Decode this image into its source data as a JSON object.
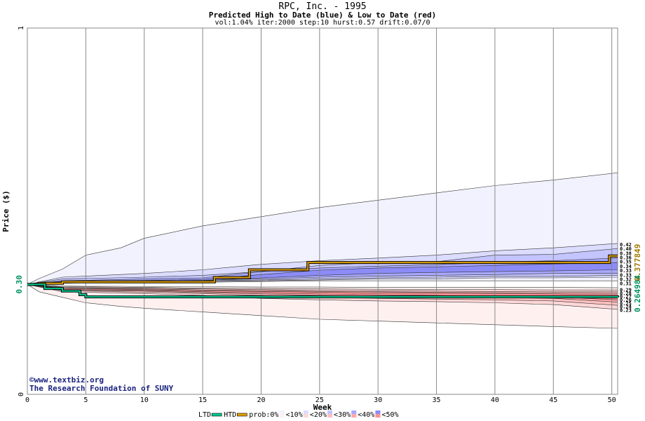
{
  "header": {
    "title": "RPC, Inc. - 1995",
    "subtitle": "Predicted High to Date (blue) &  Low to Date (red)",
    "params": "vol:1.04% iter:2000 step:10 hurst:0.57 drift:0.07/0"
  },
  "credits": {
    "line1": "©www.textbiz.org",
    "line2": "The Research Foundation of SUNY"
  },
  "chart_data": {
    "type": "area",
    "xlabel": "Week",
    "ylabel": "Price ($)",
    "xlim": [
      0,
      50.5
    ],
    "ylim": [
      0,
      1
    ],
    "x_ticks": [
      0,
      5,
      10,
      15,
      20,
      25,
      30,
      35,
      40,
      45,
      50
    ],
    "y_ticks": [
      0,
      1
    ],
    "y_tick_labels": [
      "0",
      "1"
    ],
    "start_price_label": "0.30",
    "start_price": 0.3,
    "grid": "vertical",
    "legend_placement": "bottom",
    "legend": {
      "ltd": "LTD",
      "htd": "HTD",
      "prob": "prob:0%",
      "buckets": [
        "<10%",
        "<20%",
        "<30%",
        "<40%",
        "<50%"
      ]
    },
    "colors": {
      "ltd_line": "#00c890",
      "htd_line": "#e0a000",
      "band_blue": [
        "#f2f2ff",
        "#dcdcff",
        "#c4c4ff",
        "#a8a8ff",
        "#8c8cf8"
      ],
      "band_red": [
        "#fff0f0",
        "#ffd8d8",
        "#ffc0c0",
        "#ffa8a8",
        "#ff9090"
      ]
    },
    "htd_final_label": "0.377849",
    "ltd_final_label": "0.264984",
    "right_labels_high": [
      "0.42",
      "0.40",
      "0.38",
      "0.36",
      "0.35",
      "0.34",
      "0.33",
      "0.33",
      "0.32",
      "0.31"
    ],
    "right_labels_low": [
      "0.29",
      "0.28",
      "0.27",
      "0.26",
      "0.25",
      "0.24",
      "0.23"
    ],
    "series": [
      {
        "name": "HTD",
        "x": [
          0,
          1,
          3,
          15.2,
          16,
          18,
          19,
          23.5,
          24,
          49.5,
          49.8,
          50.5
        ],
        "values": [
          0.3,
          0.303,
          0.307,
          0.307,
          0.319,
          0.319,
          0.34,
          0.34,
          0.36,
          0.36,
          0.378,
          0.378
        ]
      },
      {
        "name": "LTD",
        "x": [
          0,
          1.5,
          3,
          4.5,
          5,
          50.5
        ],
        "values": [
          0.3,
          0.289,
          0.282,
          0.272,
          0.266,
          0.265
        ]
      }
    ],
    "high_bands": [
      {
        "bucket": "<10%",
        "x": [
          0,
          1,
          3,
          5,
          8,
          10,
          15,
          20,
          25,
          30,
          35,
          40,
          45,
          50.5
        ],
        "upper": [
          0.3,
          0.316,
          0.342,
          0.38,
          0.4,
          0.426,
          0.46,
          0.485,
          0.51,
          0.53,
          0.55,
          0.57,
          0.585,
          0.605
        ],
        "lower": [
          0.3,
          0.301,
          0.303,
          0.305,
          0.305,
          0.305,
          0.306,
          0.308,
          0.31,
          0.31,
          0.31,
          0.31,
          0.31,
          0.31
        ]
      },
      {
        "bucket": "<20%",
        "x": [
          0,
          3,
          10,
          15,
          20,
          25,
          30,
          35,
          40,
          45,
          50.5
        ],
        "upper": [
          0.3,
          0.32,
          0.33,
          0.34,
          0.355,
          0.365,
          0.372,
          0.38,
          0.392,
          0.4,
          0.412
        ],
        "lower": [
          0.3,
          0.304,
          0.306,
          0.308,
          0.31,
          0.312,
          0.315,
          0.315,
          0.318,
          0.318,
          0.32
        ]
      },
      {
        "bucket": "<30%",
        "x": [
          0,
          3,
          10,
          15,
          20,
          25,
          30,
          35,
          40,
          45,
          50.5
        ],
        "upper": [
          0.3,
          0.315,
          0.32,
          0.325,
          0.335,
          0.352,
          0.36,
          0.362,
          0.38,
          0.382,
          0.398
        ],
        "lower": [
          0.3,
          0.305,
          0.307,
          0.31,
          0.312,
          0.315,
          0.318,
          0.32,
          0.322,
          0.322,
          0.325
        ]
      },
      {
        "bucket": "<40%",
        "x": [
          0,
          3,
          10,
          15,
          20,
          25,
          30,
          35,
          40,
          45,
          50.5
        ],
        "upper": [
          0.3,
          0.31,
          0.315,
          0.318,
          0.335,
          0.345,
          0.35,
          0.354,
          0.36,
          0.365,
          0.372
        ],
        "lower": [
          0.3,
          0.306,
          0.308,
          0.312,
          0.315,
          0.32,
          0.323,
          0.325,
          0.327,
          0.33,
          0.33
        ]
      },
      {
        "bucket": "<50%",
        "x": [
          0,
          3,
          10,
          15,
          20,
          25,
          30,
          35,
          40,
          45,
          50.5
        ],
        "upper": [
          0.3,
          0.309,
          0.311,
          0.314,
          0.327,
          0.339,
          0.345,
          0.348,
          0.352,
          0.356,
          0.36
        ],
        "lower": [
          0.3,
          0.306,
          0.308,
          0.311,
          0.318,
          0.325,
          0.33,
          0.333,
          0.335,
          0.337,
          0.34
        ]
      }
    ],
    "low_bands": [
      {
        "bucket": "<10%",
        "x": [
          0,
          1,
          3,
          5,
          8,
          10,
          15,
          20,
          25,
          30,
          35,
          40,
          45,
          50.5
        ],
        "upper": [
          0.3,
          0.298,
          0.296,
          0.295,
          0.295,
          0.294,
          0.294,
          0.293,
          0.293,
          0.292,
          0.292,
          0.292,
          0.292,
          0.291
        ],
        "lower": [
          0.3,
          0.28,
          0.265,
          0.25,
          0.24,
          0.235,
          0.225,
          0.215,
          0.205,
          0.2,
          0.195,
          0.19,
          0.185,
          0.18
        ]
      },
      {
        "bucket": "<20%",
        "x": [
          0,
          3,
          10,
          15,
          20,
          25,
          30,
          35,
          40,
          45,
          50.5
        ],
        "upper": [
          0.3,
          0.294,
          0.292,
          0.29,
          0.289,
          0.288,
          0.287,
          0.286,
          0.286,
          0.285,
          0.285
        ],
        "lower": [
          0.3,
          0.28,
          0.275,
          0.27,
          0.262,
          0.258,
          0.255,
          0.253,
          0.25,
          0.245,
          0.232
        ]
      },
      {
        "bucket": "<30%",
        "x": [
          0,
          3,
          10,
          15,
          20,
          25,
          30,
          35,
          40,
          45,
          50.5
        ],
        "upper": [
          0.3,
          0.292,
          0.29,
          0.288,
          0.286,
          0.284,
          0.283,
          0.282,
          0.281,
          0.28,
          0.28
        ],
        "lower": [
          0.3,
          0.283,
          0.279,
          0.275,
          0.27,
          0.265,
          0.262,
          0.26,
          0.258,
          0.255,
          0.243
        ]
      },
      {
        "bucket": "<40%",
        "x": [
          0,
          3,
          10,
          15,
          20,
          25,
          30,
          35,
          40,
          45,
          50.5
        ],
        "upper": [
          0.3,
          0.29,
          0.288,
          0.285,
          0.283,
          0.281,
          0.28,
          0.279,
          0.278,
          0.277,
          0.276
        ],
        "lower": [
          0.3,
          0.285,
          0.282,
          0.278,
          0.274,
          0.27,
          0.268,
          0.266,
          0.264,
          0.262,
          0.252
        ]
      },
      {
        "bucket": "<50%",
        "x": [
          0,
          3,
          10,
          15,
          20,
          25,
          30,
          35,
          40,
          45,
          50.5
        ],
        "upper": [
          0.3,
          0.289,
          0.286,
          0.283,
          0.281,
          0.279,
          0.277,
          0.276,
          0.275,
          0.274,
          0.272
        ],
        "lower": [
          0.3,
          0.286,
          0.284,
          0.28,
          0.277,
          0.274,
          0.272,
          0.27,
          0.268,
          0.266,
          0.258
        ]
      }
    ]
  }
}
